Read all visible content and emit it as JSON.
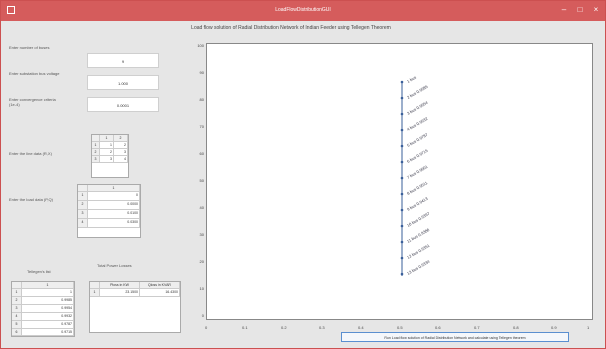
{
  "window": {
    "title": "LoadFlowDistributionGUI"
  },
  "main_title": "Load flow solution of Radial Distribution Network of Indian Feeder using Tellegen Theorem",
  "inputs": [
    {
      "label": "Enter number of buses",
      "value": "9"
    },
    {
      "label": "Enter substation bus voltage",
      "value": "1.000"
    },
    {
      "label": "Enter convergence criteria (1e-4)",
      "value": "0.0001"
    }
  ],
  "line_data_label": "Enter the line data (R,X)",
  "line_data_table": {
    "header": [
      "",
      "1",
      "2"
    ],
    "rows": [
      [
        "1",
        "1",
        "2"
      ],
      [
        "2",
        "2",
        "3"
      ],
      [
        "3",
        "3",
        "4"
      ]
    ]
  },
  "load_data_label": "Enter the load data (P,Q)",
  "load_data_table": {
    "header": [
      "",
      "1"
    ],
    "rows": [
      [
        "1",
        "0"
      ],
      [
        "2",
        "0.0000"
      ],
      [
        "3",
        "0.0100"
      ],
      [
        "4",
        "0.0300"
      ]
    ]
  },
  "tellegen_label": "Tellegen's list",
  "tellegen_table": {
    "header": [
      "",
      "1"
    ],
    "rows": [
      [
        "1",
        "1"
      ],
      [
        "2",
        "0.9985"
      ],
      [
        "3",
        "0.9954"
      ],
      [
        "4",
        "0.9932"
      ],
      [
        "5",
        "0.9787"
      ],
      [
        "6",
        "0.9715"
      ]
    ]
  },
  "total_losses_label": "Total Power Losses",
  "losses_table": {
    "header": [
      "",
      "Ploss in KW",
      "Qloss in KVAR"
    ],
    "rows": [
      [
        "1",
        "23.1500",
        "16.4300"
      ]
    ]
  },
  "plot": {
    "y_ticks": [
      "100",
      "90",
      "80",
      "70",
      "60",
      "50",
      "40",
      "30",
      "20",
      "10",
      "0"
    ],
    "x_ticks": [
      "0",
      "0.1",
      "0.2",
      "0.3",
      "0.4",
      "0.5",
      "0.6",
      "0.7",
      "0.8",
      "0.9",
      "1"
    ],
    "bus_labels": [
      "1 bus",
      "2 bus 0.9985",
      "3 bus 0.9954",
      "4 bus 0.9932",
      "5 bus 0.9787",
      "6 bus 0.9715",
      "7 bus 0.9601",
      "8 bus 0.9511",
      "9 bus 0.9413",
      "10 bus 0.9397",
      "11 bus 0.9386",
      "12 bus 0.9351",
      "13 bus 0.9334"
    ]
  },
  "action_button": "Run Load flow solution of Radial Distribution Network and calculate using Tellegen theorem"
}
